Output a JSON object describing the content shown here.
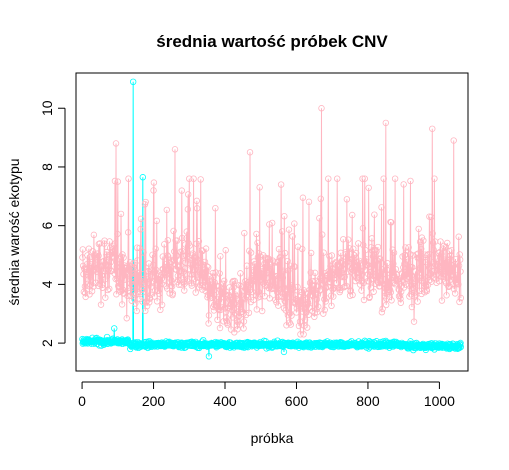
{
  "chart_data": {
    "type": "line",
    "title": "średnia wartość próbek CNV",
    "xlabel": "próbka",
    "ylabel": "średnia warość ekotypu",
    "xlim": [
      -17,
      1080
    ],
    "ylim": [
      1.05,
      11.2
    ],
    "x_ticks": [
      0,
      200,
      400,
      600,
      800,
      1000
    ],
    "y_ticks": [
      2,
      4,
      6,
      8,
      10
    ],
    "grid": false,
    "legend": "none",
    "n_points": 1060,
    "series": [
      {
        "color": "#FFB6C1",
        "marker": "open-circle",
        "baseline": 4.2,
        "highlight_points": [
          {
            "x": 95,
            "y": 8.8
          },
          {
            "x": 130,
            "y": 7.6
          },
          {
            "x": 200,
            "y": 7.2
          },
          {
            "x": 260,
            "y": 8.6
          },
          {
            "x": 470,
            "y": 8.5
          },
          {
            "x": 670,
            "y": 10.0
          },
          {
            "x": 850,
            "y": 9.5
          },
          {
            "x": 980,
            "y": 9.3
          },
          {
            "x": 1040,
            "y": 8.9
          }
        ]
      },
      {
        "color": "#00FFFF",
        "marker": "open-circle",
        "baseline": 1.95,
        "highlight_points": [
          {
            "x": 143,
            "y": 10.9
          },
          {
            "x": 170,
            "y": 7.65
          },
          {
            "x": 90,
            "y": 2.5
          },
          {
            "x": 355,
            "y": 1.55
          },
          {
            "x": 565,
            "y": 1.7
          }
        ]
      }
    ]
  }
}
